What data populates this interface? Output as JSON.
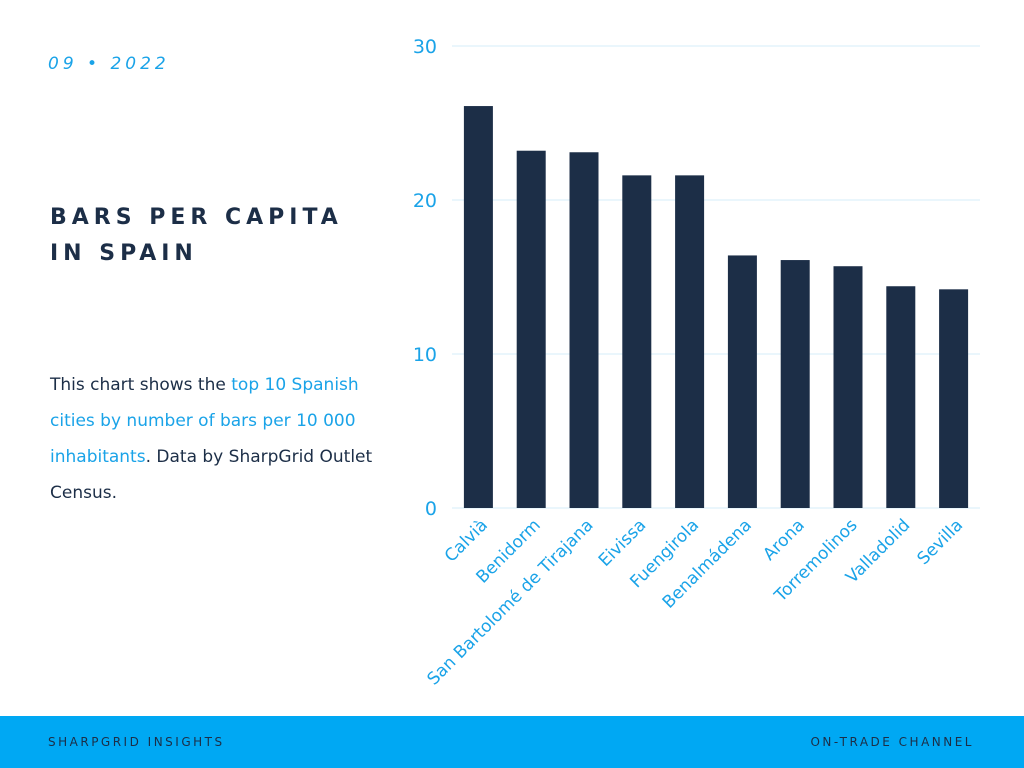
{
  "header": {
    "date": "09 • 2022"
  },
  "title": {
    "line1": "BARS PER CAPITA",
    "line2": "IN SPAIN"
  },
  "description": {
    "part1": "This chart shows the ",
    "highlight": "top 10 Spanish cities by number of bars per 10 000 inhabitants",
    "part2": ". Data by SharpGrid Outlet Census."
  },
  "footer": {
    "left": "SHARPGRID INSIGHTS",
    "right": "ON-TRADE CHANNEL"
  },
  "colors": {
    "bar": "#1c2e47",
    "accent": "#1aa3e8",
    "footer_bg": "#00a8f3",
    "grid": "#d6ecf8"
  },
  "chart_data": {
    "type": "bar",
    "categories": [
      "Calvià",
      "Benidorm",
      "San Bartolomé de Tirajana",
      "Eivissa",
      "Fuengirola",
      "Benalmádena",
      "Arona",
      "Torremolinos",
      "Valladolid",
      "Sevilla"
    ],
    "values": [
      26.1,
      23.2,
      23.1,
      21.6,
      21.6,
      16.4,
      16.1,
      15.7,
      14.4,
      14.2
    ],
    "yticks": [
      "0",
      "10",
      "20",
      "30"
    ],
    "ylim": [
      0,
      30
    ],
    "grid": true,
    "title": "",
    "xlabel": "",
    "ylabel": ""
  }
}
